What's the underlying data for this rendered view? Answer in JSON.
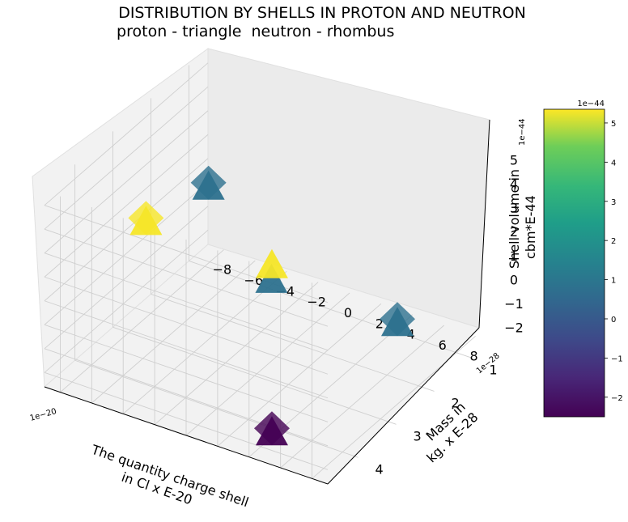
{
  "chart_data": {
    "type": "scatter3d",
    "title_line1": "DISTRIBUTION BY SHELLS IN PROTON AND NEUTRON",
    "title_line2": " proton - triangle  neutron - rhombus",
    "xlabel_line1": "The quantity charge shell",
    "xlabel_line2": "in Cl x E-20",
    "ylabel_line1": "Mass in",
    "ylabel_line2": "kg. x E-28",
    "zlabel_line1": "Shell volume in",
    "zlabel_line2": "cbm*E-44",
    "x_scale_label": "1e−20",
    "y_scale_label": "1e−28",
    "z_scale_label": "1e−44",
    "colorbar_scale_label": "1e−44",
    "x_ticks": [
      "−8",
      "−6",
      "−4",
      "−2",
      "0",
      "2",
      "4",
      "6",
      "8"
    ],
    "y_ticks": [
      "1",
      "2",
      "3",
      "4"
    ],
    "z_ticks": [
      "−2",
      "−1",
      "0",
      "1",
      "2",
      "3",
      "4",
      "5"
    ],
    "colorbar_ticks": [
      "−2",
      "−1",
      "0",
      "1",
      "2",
      "3",
      "4",
      "5"
    ],
    "xlim": [
      -9,
      9
    ],
    "ylim": [
      0.5,
      4.8
    ],
    "zlim": [
      -2.6,
      5.6
    ],
    "colorbar_range": [
      -2.5,
      5.35
    ],
    "colormap": "viridis",
    "points": [
      {
        "series": "neutron",
        "marker": "rhombus",
        "x": -8.0,
        "y": 0.9,
        "z": 0.8,
        "c": 0.8
      },
      {
        "series": "proton",
        "marker": "triangle",
        "x": -8.0,
        "y": 0.9,
        "z": 0.8,
        "c": 0.8
      },
      {
        "series": "neutron",
        "marker": "rhombus",
        "x": -4.0,
        "y": 4.2,
        "z": 4.8,
        "c": 5.3
      },
      {
        "series": "proton",
        "marker": "triangle",
        "x": -4.0,
        "y": 4.2,
        "z": 4.8,
        "c": 5.3
      },
      {
        "series": "proton",
        "marker": "triangle",
        "x": -4.0,
        "y": 0.9,
        "z": -2.2,
        "c": 0.8
      },
      {
        "series": "proton",
        "marker": "triangle",
        "x": 4.0,
        "y": 4.2,
        "z": 4.8,
        "c": 5.3
      },
      {
        "series": "neutron",
        "marker": "rhombus",
        "x": 4.0,
        "y": 4.2,
        "z": -2.2,
        "c": -2.5
      },
      {
        "series": "proton",
        "marker": "triangle",
        "x": 4.0,
        "y": 4.2,
        "z": -2.2,
        "c": -2.5
      },
      {
        "series": "neutron",
        "marker": "rhombus",
        "x": 4.0,
        "y": 0.9,
        "z": -2.2,
        "c": 0.8
      },
      {
        "series": "proton",
        "marker": "triangle",
        "x": 4.0,
        "y": 0.9,
        "z": -2.2,
        "c": 0.8
      }
    ]
  }
}
